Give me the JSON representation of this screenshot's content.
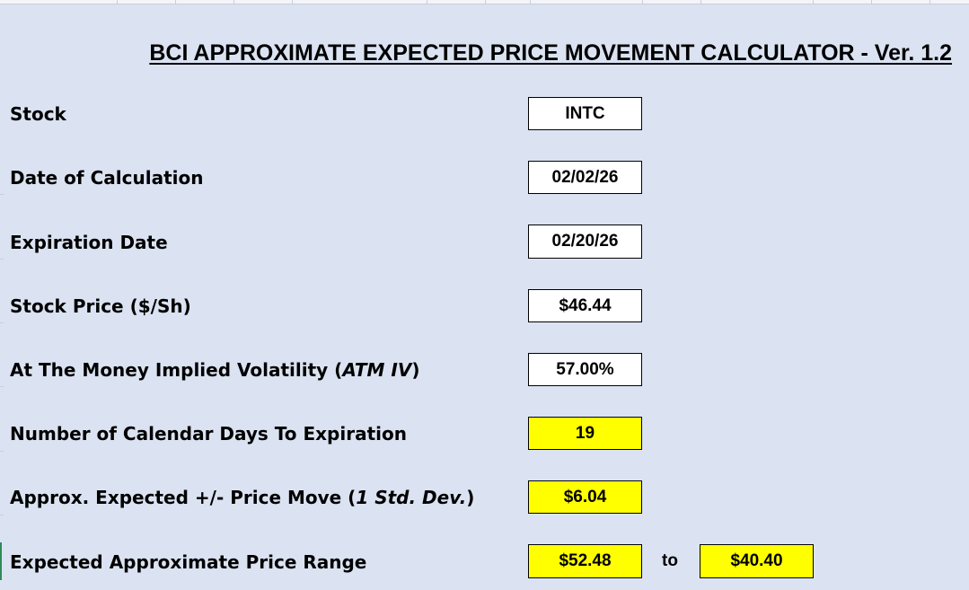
{
  "title": "BCI APPROXIMATE EXPECTED PRICE MOVEMENT CALCULATOR - Ver. 1.2",
  "rows": {
    "stock": {
      "label": "Stock",
      "value": "INTC"
    },
    "date_of_calculation": {
      "label": "Date of Calculation",
      "value": "02/02/26"
    },
    "expiration_date": {
      "label": "Expiration Date",
      "value": "02/20/26"
    },
    "stock_price": {
      "label": "Stock Price ($/Sh)",
      "value": "$46.44"
    },
    "atm_iv": {
      "label_prefix": "At The Money Implied Volatility (",
      "label_italic": "ATM IV",
      "label_suffix": ")",
      "value": "57.00%"
    },
    "days_to_expiration": {
      "label": "Number of Calendar Days To Expiration",
      "value": "19"
    },
    "expected_move": {
      "label_prefix": "Approx. Expected +/- Price Move (",
      "label_italic": "1 Std. Dev.",
      "label_suffix": ")",
      "value": "$6.04"
    },
    "price_range": {
      "label": "Expected Approximate Price Range",
      "high": "$52.48",
      "connector": "to",
      "low": "$40.40"
    }
  },
  "colors": {
    "sheet_background": "#dbe3f2",
    "input_cell": "#ffffff",
    "output_cell": "#ffff00"
  }
}
